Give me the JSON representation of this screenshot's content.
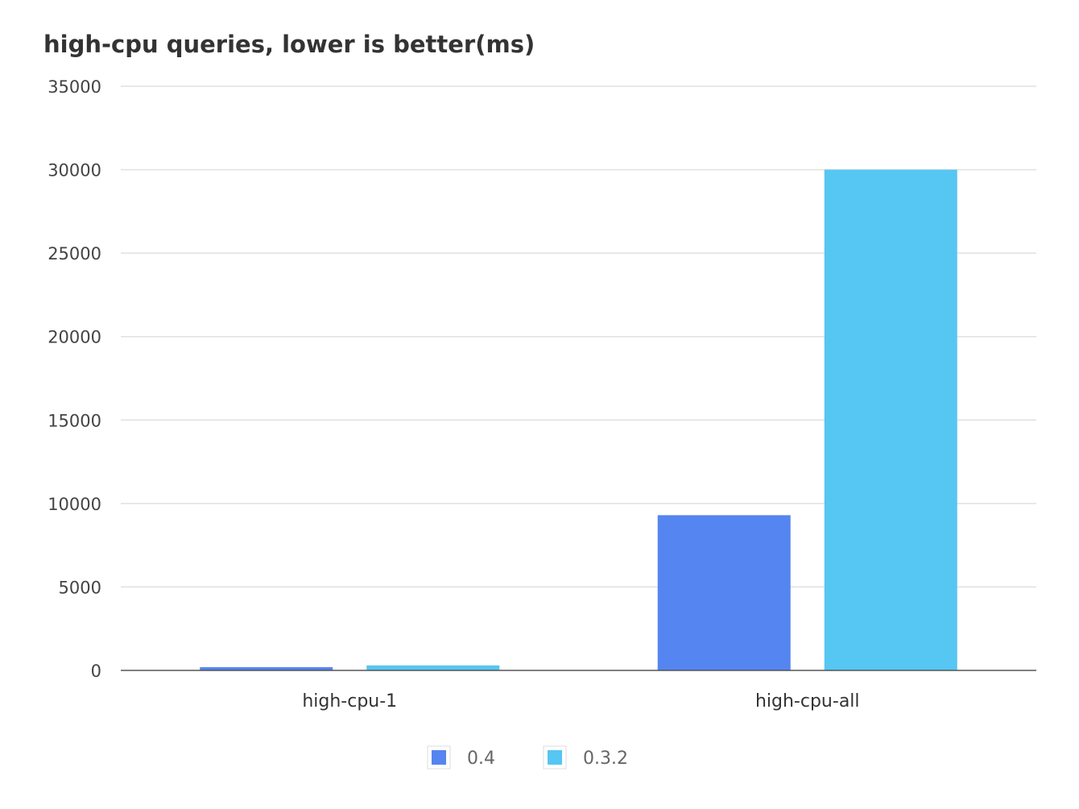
{
  "chart_data": {
    "type": "bar",
    "title": "high-cpu queries, lower is better(ms)",
    "categories": [
      "high-cpu-1",
      "high-cpu-all"
    ],
    "series": [
      {
        "name": "0.4",
        "values": [
          100,
          9300
        ],
        "color": "#5585f0"
      },
      {
        "name": "0.3.2",
        "values": [
          300,
          30000
        ],
        "color": "#56c6f2"
      }
    ],
    "ylim": [
      0,
      35000
    ],
    "yticks": [
      0,
      5000,
      10000,
      15000,
      20000,
      25000,
      30000,
      35000
    ],
    "xlabel": "",
    "ylabel": "",
    "grid": true,
    "legend_position": "bottom-center"
  }
}
